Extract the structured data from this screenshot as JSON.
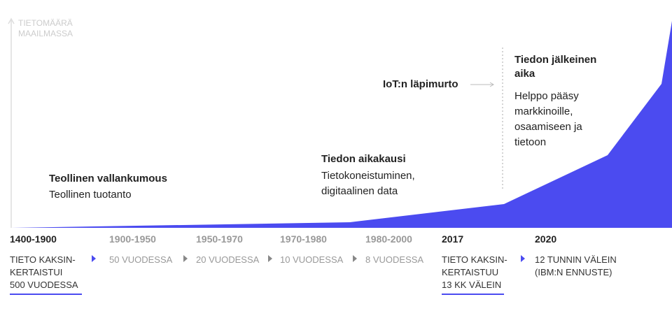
{
  "axis_label": [
    "TIETOMÄÄRÄ",
    "MAAILMASSA"
  ],
  "annotations": [
    {
      "title": [
        "Teollinen vallankumous"
      ],
      "text": [
        "Teollinen tuotanto"
      ]
    },
    {
      "title": [
        "Tiedon aikakausi"
      ],
      "text": [
        "Tietokoneistuminen,",
        "digitaalinen data"
      ]
    },
    {
      "title": [
        "IoT:n läpimurto"
      ],
      "text": []
    },
    {
      "title": [
        "Tiedon jälkeinen",
        "aika"
      ],
      "text": [
        "Helppo pääsy",
        "markkinoille,",
        "osaamiseen ja",
        "tietoon"
      ]
    }
  ],
  "periods": [
    {
      "label": "1400-1900",
      "text": [
        "TIETO KAKSIN-",
        "KERTAISTUI",
        "500 VUODESSA"
      ]
    },
    {
      "label": "1900-1950",
      "text": [
        "50 VUODESSA"
      ]
    },
    {
      "label": "1950-1970",
      "text": [
        "20 VUODESSA"
      ]
    },
    {
      "label": "1970-1980",
      "text": [
        "10 VUODESSA"
      ]
    },
    {
      "label": "1980-2000",
      "text": [
        "8 VUODESSA"
      ]
    },
    {
      "label": "2017",
      "text": [
        "TIETO KAKSIN-",
        "KERTAISTUU",
        "13 KK VÄLEIN"
      ]
    },
    {
      "label": "2020",
      "text": [
        "12 TUNNIN VÄLEIN",
        "(IBM:N ENNUSTE)"
      ]
    }
  ]
}
